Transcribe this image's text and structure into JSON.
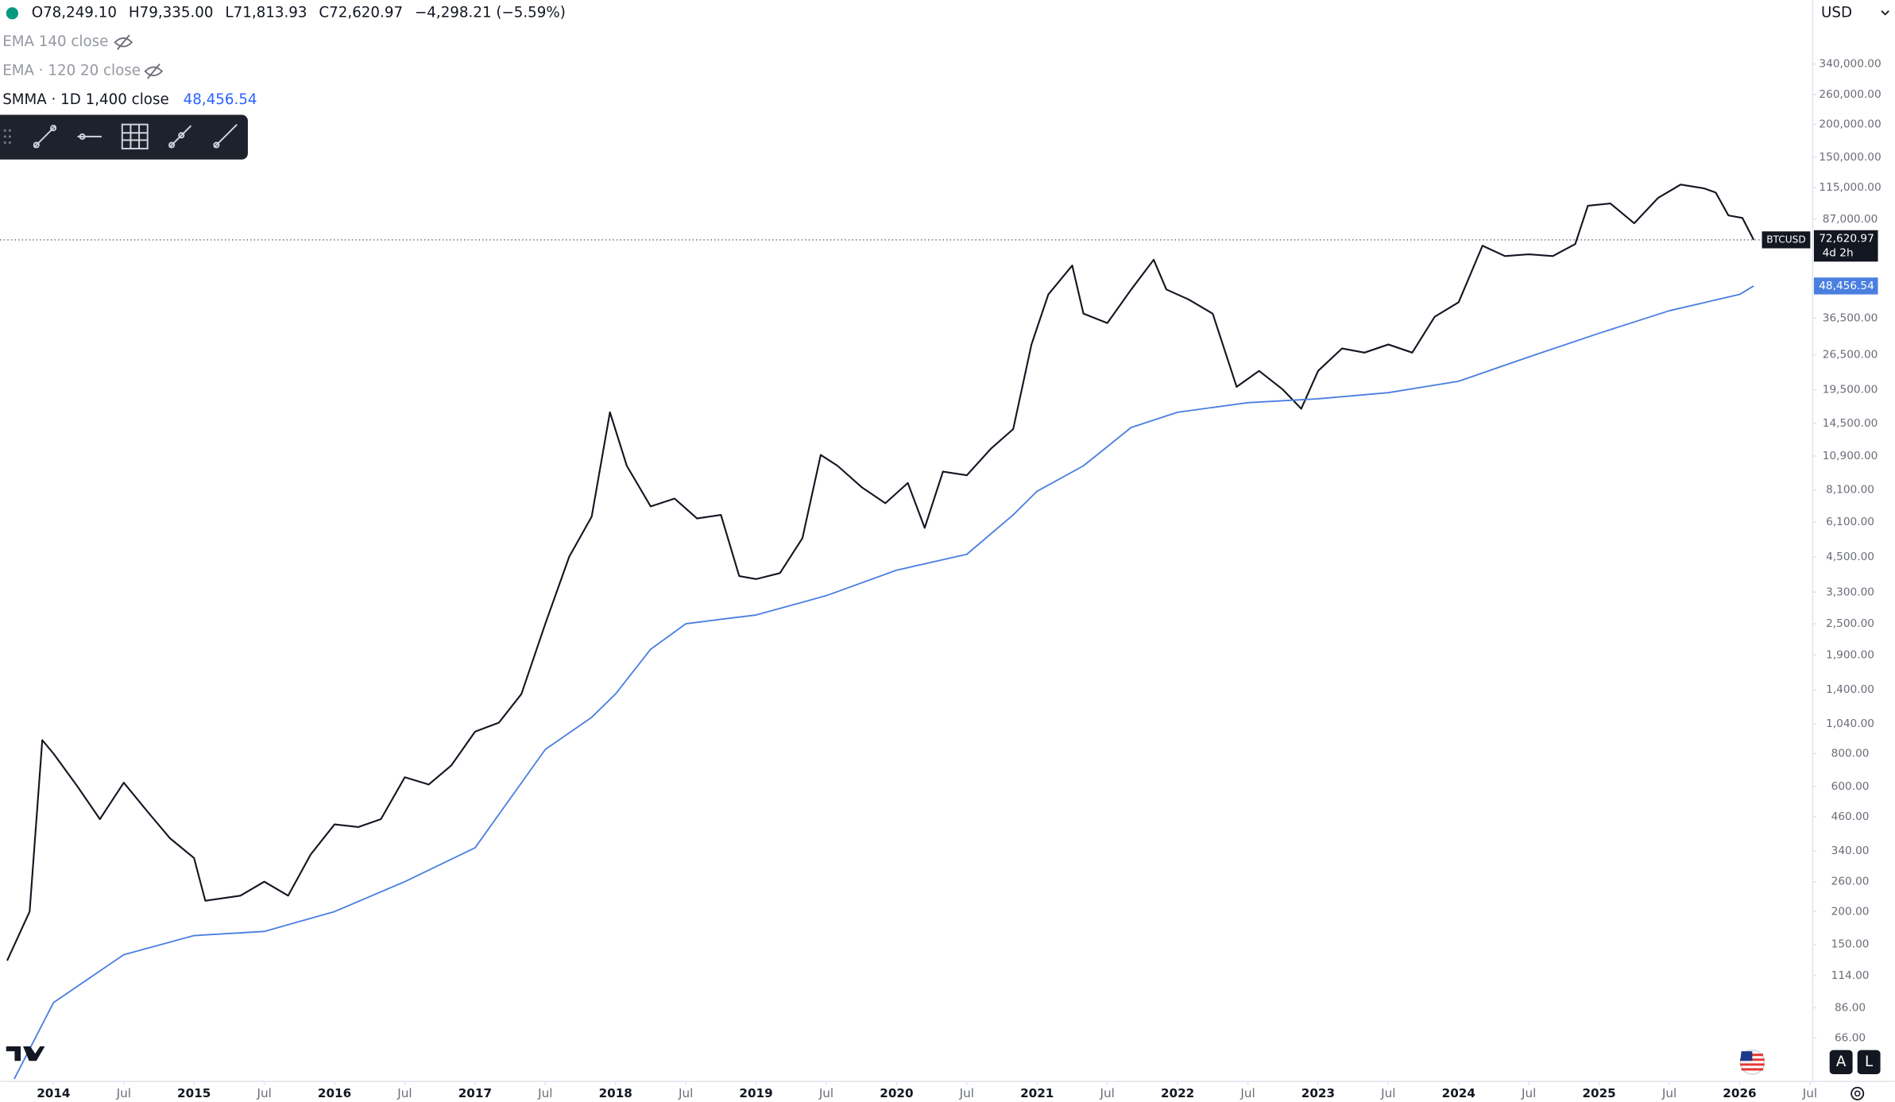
{
  "ui": {
    "ohlc": [
      "O78,249.10",
      "H79,335.00",
      "L71,813.93",
      "C72,620.97",
      "−4,298.21 (−5.59%)"
    ],
    "indicators": [
      "EMA 140 close",
      "EMA · 120 20 close",
      "SMMA · 1D 1,400 close"
    ],
    "smma_value": "48,456.54",
    "currency": "USD",
    "symbol_tag": "BTCUSD",
    "last_price_tag": "72,620.97",
    "countdown": "4d 2h",
    "smma_tag": "48,456.54",
    "scale_buttons": [
      "A",
      "L"
    ]
  },
  "chart_data": {
    "type": "line",
    "log_scale": true,
    "grid": false,
    "xlim": [
      2013.62,
      2026.52
    ],
    "ylim": [
      46,
      596000
    ],
    "xticks": [
      2014,
      {
        "value": 2014.5,
        "label": "Jul"
      },
      2015,
      {
        "value": 2015.5,
        "label": "Jul"
      },
      2016,
      {
        "value": 2016.5,
        "label": "Jul"
      },
      2017,
      {
        "value": 2017.5,
        "label": "Jul"
      },
      2018,
      {
        "value": 2018.5,
        "label": "Jul"
      },
      2019,
      {
        "value": 2019.5,
        "label": "Jul"
      },
      2020,
      {
        "value": 2020.5,
        "label": "Jul"
      },
      2021,
      {
        "value": 2021.5,
        "label": "Jul"
      },
      2022,
      {
        "value": 2022.5,
        "label": "Jul"
      },
      2023,
      {
        "value": 2023.5,
        "label": "Jul"
      },
      2024,
      {
        "value": 2024.5,
        "label": "Jul"
      },
      2025,
      {
        "value": 2025.5,
        "label": "Jul"
      },
      2026,
      {
        "value": 2026.5,
        "label": "Jul"
      }
    ],
    "yticks": [
      {
        "value": 340000,
        "label": "340,000.00"
      },
      {
        "value": 260000,
        "label": "260,000.00"
      },
      {
        "value": 200000,
        "label": "200,000.00"
      },
      {
        "value": 150000,
        "label": "150,000.00"
      },
      {
        "value": 115000,
        "label": "115,000.00"
      },
      {
        "value": 87000,
        "label": "87,000.00"
      },
      {
        "value": 36500,
        "label": "36,500.00"
      },
      {
        "value": 26500,
        "label": "26,500.00"
      },
      {
        "value": 19500,
        "label": "19,500.00"
      },
      {
        "value": 14500,
        "label": "14,500.00"
      },
      {
        "value": 10900,
        "label": "10,900.00"
      },
      {
        "value": 8100,
        "label": "8,100.00"
      },
      {
        "value": 6100,
        "label": "6,100.00"
      },
      {
        "value": 4500,
        "label": "4,500.00"
      },
      {
        "value": 3300,
        "label": "3,300.00"
      },
      {
        "value": 2500,
        "label": "2,500.00"
      },
      {
        "value": 1900,
        "label": "1,900.00"
      },
      {
        "value": 1400,
        "label": "1,400.00"
      },
      {
        "value": 1040,
        "label": "1,040.00"
      },
      {
        "value": 800,
        "label": "800.00"
      },
      {
        "value": 600,
        "label": "600.00"
      },
      {
        "value": 460,
        "label": "460.00"
      },
      {
        "value": 340,
        "label": "340.00"
      },
      {
        "value": 260,
        "label": "260.00"
      },
      {
        "value": 200,
        "label": "200.00"
      },
      {
        "value": 150,
        "label": "150.00"
      },
      {
        "value": 114,
        "label": "114.00"
      },
      {
        "value": 86,
        "label": "86.00"
      },
      {
        "value": 66,
        "label": "66.00"
      }
    ],
    "series": [
      {
        "name": "BTCUSD",
        "color": "#131722",
        "x": [
          2013.67,
          2013.83,
          2013.92,
          2014.0,
          2014.17,
          2014.33,
          2014.5,
          2014.67,
          2014.83,
          2015.0,
          2015.08,
          2015.33,
          2015.5,
          2015.67,
          2015.83,
          2016.0,
          2016.17,
          2016.33,
          2016.5,
          2016.67,
          2016.83,
          2017.0,
          2017.17,
          2017.33,
          2017.5,
          2017.67,
          2017.83,
          2017.96,
          2018.08,
          2018.25,
          2018.42,
          2018.58,
          2018.75,
          2018.88,
          2019.0,
          2019.17,
          2019.33,
          2019.46,
          2019.58,
          2019.75,
          2019.92,
          2020.08,
          2020.2,
          2020.33,
          2020.5,
          2020.67,
          2020.83,
          2020.96,
          2021.08,
          2021.25,
          2021.33,
          2021.5,
          2021.67,
          2021.83,
          2021.92,
          2022.08,
          2022.25,
          2022.42,
          2022.58,
          2022.75,
          2022.88,
          2023.0,
          2023.17,
          2023.33,
          2023.5,
          2023.67,
          2023.83,
          2024.0,
          2024.17,
          2024.33,
          2024.5,
          2024.67,
          2024.83,
          2024.92,
          2025.08,
          2025.25,
          2025.42,
          2025.58,
          2025.75,
          2025.83,
          2025.92,
          2026.02,
          2026.1
        ],
        "values": [
          130,
          200,
          900,
          800,
          600,
          450,
          620,
          480,
          380,
          320,
          220,
          230,
          260,
          230,
          330,
          430,
          420,
          450,
          650,
          610,
          720,
          970,
          1050,
          1350,
          2500,
          4500,
          6400,
          16000,
          10000,
          7000,
          7500,
          6300,
          6500,
          3800,
          3700,
          3900,
          5300,
          11000,
          10000,
          8300,
          7200,
          8600,
          5800,
          9500,
          9200,
          11600,
          13800,
          29000,
          45000,
          58000,
          38000,
          35000,
          47000,
          61000,
          47000,
          43000,
          38000,
          20000,
          23000,
          19500,
          16500,
          23000,
          28000,
          27000,
          29000,
          27000,
          37000,
          42000,
          69000,
          63000,
          64000,
          63000,
          70000,
          98000,
          100000,
          84000,
          105000,
          118000,
          114000,
          110000,
          90000,
          88000,
          72620.97
        ]
      },
      {
        "name": "SMMA",
        "color": "#4a7fe0",
        "x": [
          2013.72,
          2014.0,
          2014.5,
          2015.0,
          2015.5,
          2016.0,
          2016.5,
          2017.0,
          2017.5,
          2017.83,
          2018.0,
          2018.25,
          2018.5,
          2018.75,
          2019.0,
          2019.5,
          2020.0,
          2020.5,
          2020.83,
          2021.0,
          2021.33,
          2021.67,
          2022.0,
          2022.5,
          2023.0,
          2023.5,
          2024.0,
          2024.5,
          2025.0,
          2025.5,
          2026.0,
          2026.1
        ],
        "values": [
          46,
          90,
          137,
          162,
          168,
          200,
          260,
          350,
          830,
          1100,
          1350,
          2000,
          2500,
          2600,
          2700,
          3200,
          4000,
          4600,
          6500,
          8000,
          10000,
          14000,
          16000,
          17400,
          18000,
          19000,
          21000,
          26000,
          32000,
          39000,
          45000,
          48456.54
        ]
      }
    ]
  }
}
